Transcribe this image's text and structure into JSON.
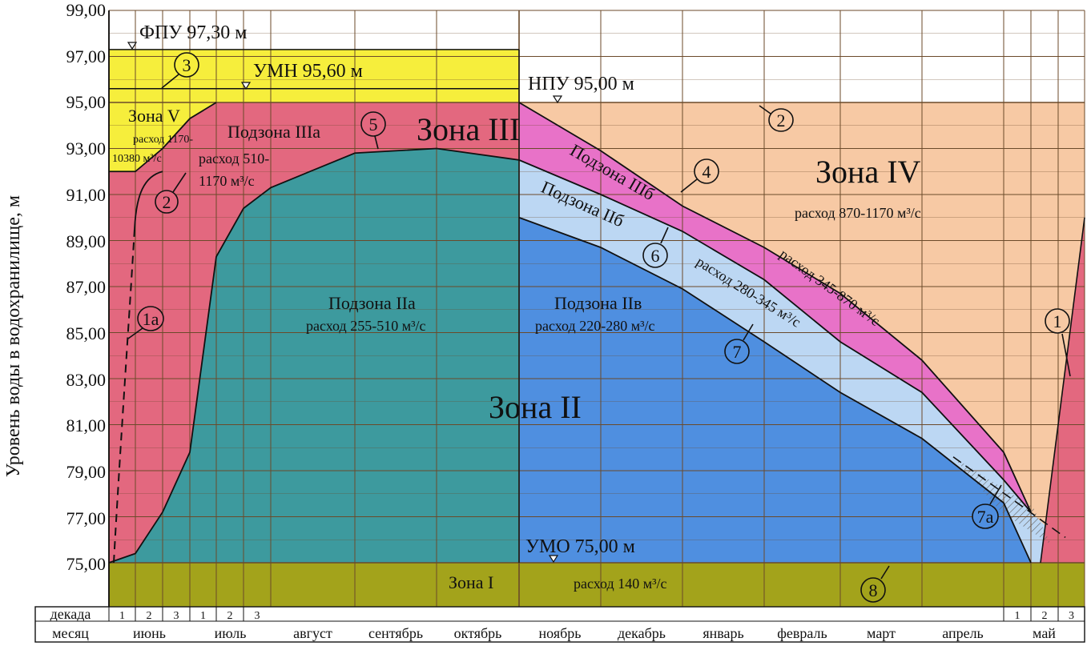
{
  "axis": {
    "ylabel": "Уровень воды в водохранилище, м",
    "ylim": [
      75,
      99
    ],
    "yticks": [
      "99,00",
      "97,00",
      "95,00",
      "93,00",
      "91,00",
      "89,00",
      "87,00",
      "85,00",
      "83,00",
      "81,00",
      "79,00",
      "77,00",
      "75,00"
    ]
  },
  "levels": {
    "fpu": "ФПУ 97,30 м",
    "umn": "УМН 95,60 м",
    "npu": "НПУ 95,00 м",
    "umo": "УМО 75,00 м"
  },
  "zones": {
    "zone1": "Зона I",
    "zone1_rate": "расход 140 м³/с",
    "zone2": "Зона II",
    "sub2a": "Подзона IIа",
    "sub2a_rate": "расход 255-510 м³/с",
    "sub2v": "Подзона IIв",
    "sub2v_rate": "расход 220-280 м³/с",
    "sub2b": "Подзона IIб",
    "sub2b_rate": "расход 280-345 м³/с",
    "zone3": "Зона III",
    "sub3a": "Подзона IIIа",
    "sub3a_rate_1": "расход 510-",
    "sub3a_rate_2": "1170 м³/с",
    "sub3b": "Подзона IIIб",
    "sub3b_rate": "расход 345-870 м³/с",
    "zone4": "Зона IV",
    "zone4_rate": "расход 870-1170 м³/с",
    "zone5": "Зона V",
    "zone5_rate_1": "расход 1170-",
    "zone5_rate_2": "10380 м³/с"
  },
  "markers": {
    "m1": "1",
    "m1a": "1а",
    "m2": "2",
    "m2b": "2",
    "m3": "3",
    "m4": "4",
    "m5": "5",
    "m6": "6",
    "m7": "7",
    "m7a": "7а",
    "m8": "8"
  },
  "table": {
    "row1_label": "декада",
    "row2_label": "месяц",
    "months": [
      "июнь",
      "июль",
      "август",
      "сентябрь",
      "октябрь",
      "ноябрь",
      "декабрь",
      "январь",
      "февраль",
      "март",
      "апрель",
      "май"
    ],
    "dekads_june": [
      "1",
      "2",
      "3"
    ],
    "dekads_july": [
      "1",
      "2",
      "3"
    ],
    "dekads_may": [
      "1",
      "2",
      "3"
    ]
  },
  "colors": {
    "zone1": "#a3a31b",
    "zone2a": "#3d9a9e",
    "zone2v": "#4f8fe0",
    "zone2b": "#bcd7f3",
    "zone3": "#e3687f",
    "zone3b": "#e872c8",
    "zone4": "#f7c9a4",
    "zone5": "#f6ee3c",
    "grid": "#6b4a2a"
  },
  "chart_data": {
    "type": "area",
    "x_unit": "декада / месяц (июнь – май)",
    "y_unit": "м",
    "ylim": [
      75,
      99
    ],
    "levels": {
      "ФПУ": 97.3,
      "УМН": 95.6,
      "НПУ": 95.0,
      "УМО": 75.0
    },
    "curves": [
      {
        "name": "5",
        "points": [
          [
            "июнь 1",
            75.0
          ],
          [
            "июнь 2",
            75.4
          ],
          [
            "июнь 3",
            77.2
          ],
          [
            "июль 1",
            79.8
          ],
          [
            "июль 2",
            88.3
          ],
          [
            "июль 3",
            90.4
          ],
          [
            "август",
            91.3
          ],
          [
            "сентябрь",
            92.8
          ],
          [
            "октябрь",
            93.0
          ],
          [
            "ноябрь",
            92.5
          ]
        ]
      },
      {
        "name": "4",
        "points": [
          [
            "ноябрь",
            95.0
          ],
          [
            "декабрь",
            92.9
          ],
          [
            "январь",
            90.5
          ],
          [
            "февраль",
            88.7
          ],
          [
            "март",
            86.7
          ],
          [
            "апрель",
            83.8
          ],
          [
            "май 1",
            79.8
          ],
          [
            "май 2",
            77.2
          ]
        ]
      },
      {
        "name": "6",
        "points": [
          [
            "ноябрь",
            92.5
          ],
          [
            "декабрь",
            91.0
          ],
          [
            "январь",
            89.4
          ],
          [
            "февраль",
            87.3
          ],
          [
            "март",
            84.6
          ],
          [
            "апрель",
            82.4
          ],
          [
            "май 1",
            78.6
          ],
          [
            "май 2",
            77.2
          ]
        ]
      },
      {
        "name": "7",
        "points": [
          [
            "ноябрь",
            90.0
          ],
          [
            "декабрь",
            88.7
          ],
          [
            "январь",
            86.9
          ],
          [
            "февраль",
            84.6
          ],
          [
            "март",
            82.4
          ],
          [
            "апрель",
            80.4
          ],
          [
            "май 1",
            77.6
          ],
          [
            "май 2",
            75.0
          ]
        ]
      },
      {
        "name": "2",
        "points": [
          [
            "июнь 1",
            92.0
          ],
          [
            "июнь 2",
            92.0
          ],
          [
            "июнь 3",
            93.0
          ],
          [
            "июль 1",
            94.3
          ],
          [
            "июль 2",
            95.0
          ]
        ]
      }
    ]
  }
}
